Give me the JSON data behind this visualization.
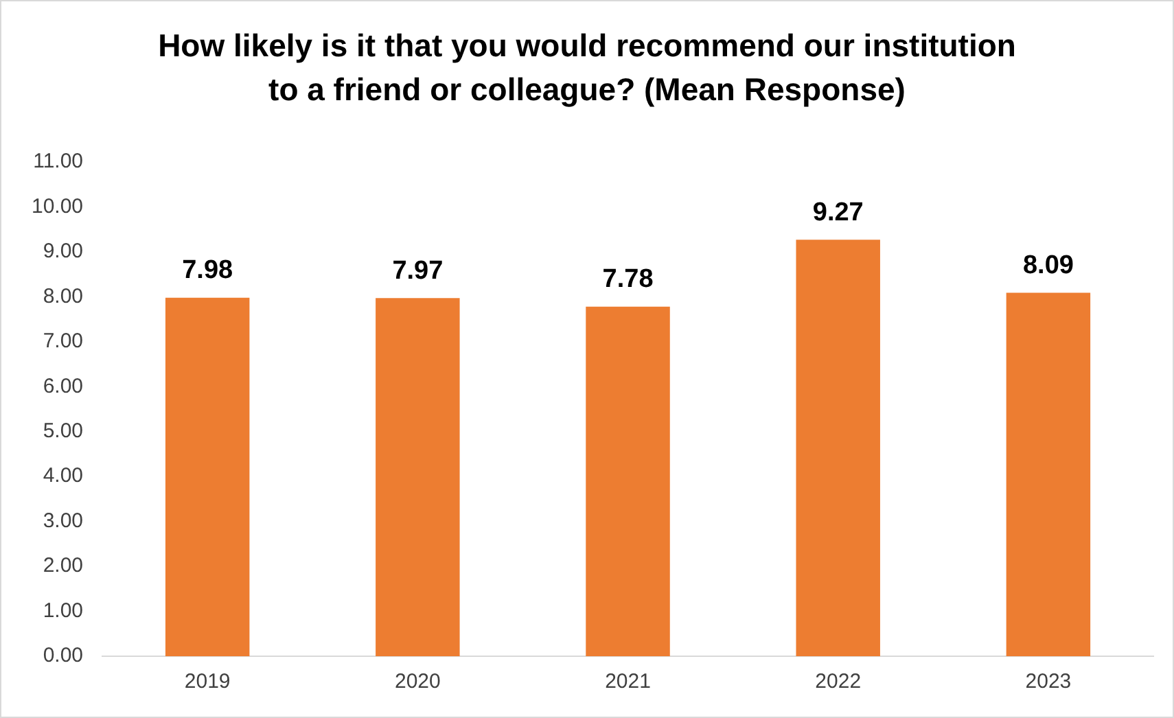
{
  "chart_data": {
    "type": "bar",
    "title": "How likely is it that you would recommend our institution to a friend or colleague? (Mean Response)",
    "categories": [
      "2019",
      "2020",
      "2021",
      "2022",
      "2023"
    ],
    "values": [
      7.98,
      7.97,
      7.78,
      9.27,
      8.09
    ],
    "color": "#ed7d31",
    "ylim": [
      0,
      11
    ],
    "yticks": [
      {
        "value": 0,
        "label": "0.00"
      },
      {
        "value": 1,
        "label": "1.00"
      },
      {
        "value": 2,
        "label": "2.00"
      },
      {
        "value": 3,
        "label": "3.00"
      },
      {
        "value": 4,
        "label": "4.00"
      },
      {
        "value": 5,
        "label": "5.00"
      },
      {
        "value": 6,
        "label": "6.00"
      },
      {
        "value": 7,
        "label": "7.00"
      },
      {
        "value": 8,
        "label": "8.00"
      },
      {
        "value": 9,
        "label": "9.00"
      },
      {
        "value": 10,
        "label": "10.00"
      },
      {
        "value": 11,
        "label": "11.00"
      }
    ],
    "data_labels": true
  }
}
